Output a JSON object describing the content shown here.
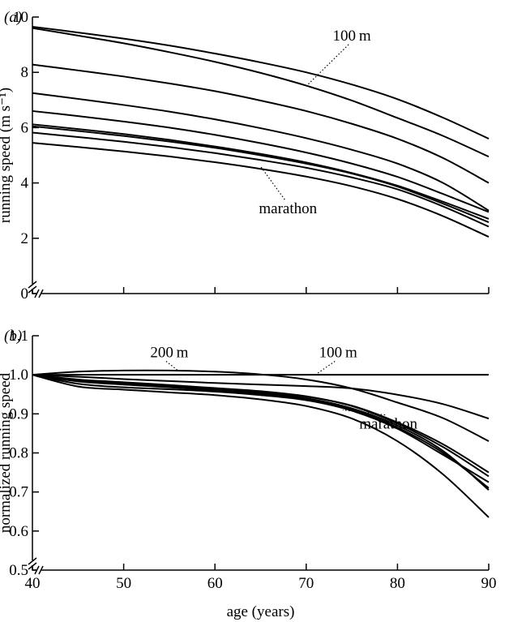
{
  "chart_data": [
    {
      "type": "line",
      "panel_label": "(a)",
      "ylabel": "running speed (m s⁻¹)",
      "xlabel": "",
      "xlim": [
        40,
        90
      ],
      "ylim": [
        0,
        10
      ],
      "x_ticks": [
        40,
        50,
        60,
        70,
        80,
        90
      ],
      "y_ticks": [
        "0",
        "2",
        "4",
        "6",
        "8",
        "10"
      ],
      "x": [
        40,
        45,
        50,
        55,
        60,
        65,
        70,
        75,
        80,
        85,
        90
      ],
      "series": [
        {
          "values": [
            9.65,
            9.44,
            9.22,
            8.97,
            8.68,
            8.36,
            8.0,
            7.56,
            7.03,
            6.36,
            5.6
          ]
        },
        {
          "values": [
            9.6,
            9.33,
            9.05,
            8.73,
            8.38,
            7.98,
            7.52,
            6.98,
            6.35,
            5.7,
            4.95
          ]
        },
        {
          "values": [
            8.28,
            8.07,
            7.85,
            7.6,
            7.32,
            6.98,
            6.6,
            6.14,
            5.6,
            4.9,
            4.0
          ]
        },
        {
          "values": [
            7.25,
            7.04,
            6.82,
            6.58,
            6.3,
            5.98,
            5.62,
            5.2,
            4.7,
            4.0,
            3.0
          ]
        },
        {
          "values": [
            6.6,
            6.42,
            6.22,
            6.0,
            5.74,
            5.44,
            5.1,
            4.7,
            4.22,
            3.6,
            2.95
          ]
        },
        {
          "values": [
            6.12,
            5.95,
            5.77,
            5.56,
            5.32,
            5.05,
            4.74,
            4.36,
            3.9,
            3.32,
            2.7
          ]
        },
        {
          "values": [
            6.05,
            5.88,
            5.7,
            5.5,
            5.27,
            5.0,
            4.7,
            4.34,
            3.87,
            3.25,
            2.58
          ]
        },
        {
          "values": [
            5.82,
            5.66,
            5.49,
            5.3,
            5.08,
            4.83,
            4.55,
            4.2,
            3.77,
            3.15,
            2.42
          ]
        },
        {
          "values": [
            5.45,
            5.3,
            5.14,
            4.96,
            4.75,
            4.51,
            4.23,
            3.88,
            3.42,
            2.8,
            2.05
          ]
        }
      ],
      "annotations": [
        {
          "text": "100 m",
          "x": 75,
          "y": 9.15,
          "point_to": {
            "x": 70,
            "y": 7.5
          }
        },
        {
          "text": "marathon",
          "x": 68,
          "y": 2.9,
          "point_to": {
            "x": 65,
            "y": 4.6
          }
        }
      ]
    },
    {
      "type": "line",
      "panel_label": "(b)",
      "ylabel": "normalized running speed",
      "xlabel": "age (years)",
      "xlim": [
        40,
        90
      ],
      "ylim": [
        0.5,
        1.1
      ],
      "x_ticks": [
        "40",
        "50",
        "60",
        "70",
        "80",
        "90"
      ],
      "y_ticks": [
        "0.5",
        "0.6",
        "0.7",
        "0.8",
        "0.9",
        "1.0",
        "1.1"
      ],
      "x": [
        40,
        45,
        50,
        55,
        60,
        65,
        70,
        75,
        80,
        85,
        90
      ],
      "series": [
        {
          "values": [
            1.0,
            1.0,
            1.0,
            1.0,
            1.0,
            1.0,
            1.0,
            1.0,
            1.0,
            1.0,
            1.0
          ]
        },
        {
          "values": [
            1.0,
            1.008,
            1.011,
            1.011,
            1.008,
            1.001,
            0.988,
            0.965,
            0.929,
            0.889,
            0.83
          ]
        },
        {
          "values": [
            1.0,
            0.995,
            0.989,
            0.984,
            0.979,
            0.975,
            0.971,
            0.965,
            0.949,
            0.925,
            0.888
          ]
        },
        {
          "values": [
            1.0,
            0.985,
            0.978,
            0.972,
            0.964,
            0.956,
            0.944,
            0.921,
            0.878,
            0.822,
            0.75
          ]
        },
        {
          "values": [
            1.0,
            0.988,
            0.981,
            0.974,
            0.966,
            0.958,
            0.945,
            0.92,
            0.875,
            0.815,
            0.74
          ]
        },
        {
          "values": [
            1.0,
            0.983,
            0.975,
            0.968,
            0.96,
            0.951,
            0.937,
            0.911,
            0.865,
            0.8,
            0.71
          ]
        },
        {
          "values": [
            1.0,
            0.985,
            0.977,
            0.97,
            0.962,
            0.953,
            0.94,
            0.914,
            0.87,
            0.805,
            0.705
          ]
        },
        {
          "values": [
            1.0,
            0.977,
            0.968,
            0.963,
            0.957,
            0.948,
            0.935,
            0.908,
            0.862,
            0.795,
            0.725
          ]
        },
        {
          "values": [
            1.0,
            0.97,
            0.962,
            0.955,
            0.948,
            0.937,
            0.92,
            0.888,
            0.83,
            0.745,
            0.635
          ]
        }
      ],
      "annotations": [
        {
          "text": "200 m",
          "x": 55,
          "y": 1.045,
          "point_to": {
            "x": 56,
            "y": 1.01
          }
        },
        {
          "text": "100 m",
          "x": 73.5,
          "y": 1.045,
          "point_to": {
            "x": 71,
            "y": 1.0
          }
        },
        {
          "text": "marathon",
          "x": 79,
          "y": 0.862,
          "point_to": {
            "x": 74,
            "y": 0.91
          }
        }
      ]
    }
  ]
}
